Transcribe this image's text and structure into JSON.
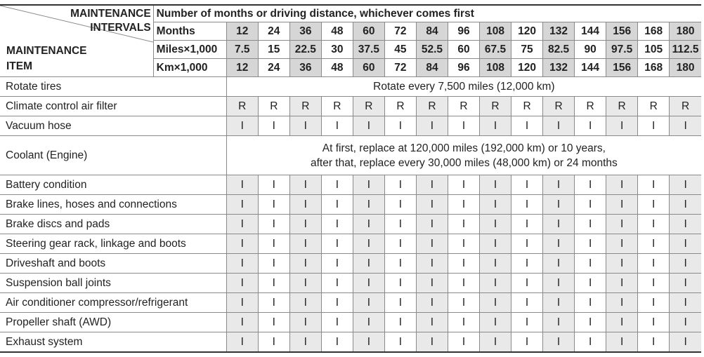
{
  "header": {
    "corner_top": [
      "MAINTENANCE",
      "INTERVALS"
    ],
    "corner_bottom": [
      "MAINTENANCE",
      "ITEM"
    ],
    "span_title": "Number of months or driving distance, whichever comes first",
    "interval_rows": [
      {
        "label": "Months",
        "values": [
          12,
          24,
          36,
          48,
          60,
          72,
          84,
          96,
          108,
          120,
          132,
          144,
          156,
          168,
          180
        ]
      },
      {
        "label": "Miles×1,000",
        "values": [
          7.5,
          15,
          22.5,
          30,
          37.5,
          45,
          52.5,
          60,
          67.5,
          75,
          82.5,
          90,
          97.5,
          105,
          112.5
        ]
      },
      {
        "label": "Km×1,000",
        "values": [
          12,
          24,
          36,
          48,
          60,
          72,
          84,
          96,
          108,
          120,
          132,
          144,
          156,
          168,
          180
        ]
      }
    ]
  },
  "items": [
    {
      "name": "Rotate tires",
      "note": [
        "Rotate every 7,500 miles (12,000 km)"
      ]
    },
    {
      "name": "Climate control air filter",
      "actions": [
        "R",
        "R",
        "R",
        "R",
        "R",
        "R",
        "R",
        "R",
        "R",
        "R",
        "R",
        "R",
        "R",
        "R",
        "R"
      ]
    },
    {
      "name": "Vacuum hose",
      "actions": [
        "I",
        "I",
        "I",
        "I",
        "I",
        "I",
        "I",
        "I",
        "I",
        "I",
        "I",
        "I",
        "I",
        "I",
        "I"
      ]
    },
    {
      "name": "Coolant (Engine)",
      "note": [
        "At first, replace at 120,000 miles (192,000 km) or 10 years,",
        "after that, replace every 30,000 miles (48,000 km) or 24 months"
      ]
    },
    {
      "name": "Battery condition",
      "actions": [
        "I",
        "I",
        "I",
        "I",
        "I",
        "I",
        "I",
        "I",
        "I",
        "I",
        "I",
        "I",
        "I",
        "I",
        "I"
      ]
    },
    {
      "name": "Brake lines, hoses and connections",
      "actions": [
        "I",
        "I",
        "I",
        "I",
        "I",
        "I",
        "I",
        "I",
        "I",
        "I",
        "I",
        "I",
        "I",
        "I",
        "I"
      ]
    },
    {
      "name": "Brake discs and pads",
      "actions": [
        "I",
        "I",
        "I",
        "I",
        "I",
        "I",
        "I",
        "I",
        "I",
        "I",
        "I",
        "I",
        "I",
        "I",
        "I"
      ]
    },
    {
      "name": "Steering gear rack, linkage and boots",
      "actions": [
        "I",
        "I",
        "I",
        "I",
        "I",
        "I",
        "I",
        "I",
        "I",
        "I",
        "I",
        "I",
        "I",
        "I",
        "I"
      ]
    },
    {
      "name": "Driveshaft and boots",
      "actions": [
        "I",
        "I",
        "I",
        "I",
        "I",
        "I",
        "I",
        "I",
        "I",
        "I",
        "I",
        "I",
        "I",
        "I",
        "I"
      ]
    },
    {
      "name": "Suspension ball joints",
      "actions": [
        "I",
        "I",
        "I",
        "I",
        "I",
        "I",
        "I",
        "I",
        "I",
        "I",
        "I",
        "I",
        "I",
        "I",
        "I"
      ]
    },
    {
      "name": "Air conditioner compressor/refrigerant",
      "actions": [
        "I",
        "I",
        "I",
        "I",
        "I",
        "I",
        "I",
        "I",
        "I",
        "I",
        "I",
        "I",
        "I",
        "I",
        "I"
      ]
    },
    {
      "name": "Propeller shaft (AWD)",
      "actions": [
        "I",
        "I",
        "I",
        "I",
        "I",
        "I",
        "I",
        "I",
        "I",
        "I",
        "I",
        "I",
        "I",
        "I",
        "I"
      ]
    },
    {
      "name": "Exhaust system",
      "actions": [
        "I",
        "I",
        "I",
        "I",
        "I",
        "I",
        "I",
        "I",
        "I",
        "I",
        "I",
        "I",
        "I",
        "I",
        "I"
      ]
    }
  ]
}
